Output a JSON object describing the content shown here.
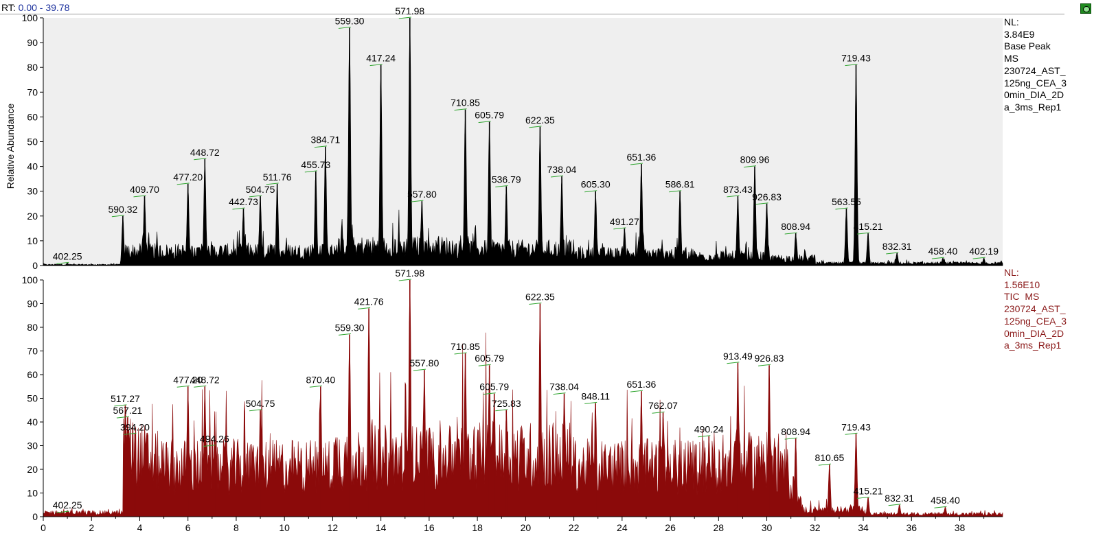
{
  "header": {
    "rt_label": "RT:",
    "rt_range": "0.00 - 39.78",
    "icon": "lock-icon"
  },
  "chart_data": [
    {
      "type": "area",
      "panel": "top",
      "ylabel": "Relative Abundance",
      "xlim": [
        0,
        39.78
      ],
      "ylim": [
        0,
        100
      ],
      "yticks": [
        0,
        10,
        20,
        30,
        40,
        50,
        60,
        70,
        80,
        90,
        100
      ],
      "color": "#000000",
      "info": [
        "NL:",
        "3.84E9",
        "Base Peak",
        "MS",
        "230724_AST_",
        "125ng_CEA_3",
        "0min_DIA_2D",
        "a_3ms_Rep1"
      ],
      "peaks": [
        {
          "x": 1.0,
          "y": 1,
          "label": "402.25"
        },
        {
          "x": 3.3,
          "y": 20,
          "label": "590.32"
        },
        {
          "x": 4.2,
          "y": 28,
          "label": "409.70"
        },
        {
          "x": 6.0,
          "y": 33,
          "label": "477.20"
        },
        {
          "x": 6.7,
          "y": 43,
          "label": "448.72"
        },
        {
          "x": 8.3,
          "y": 23,
          "label": "442.73"
        },
        {
          "x": 9.0,
          "y": 28,
          "label": "504.75"
        },
        {
          "x": 9.7,
          "y": 33,
          "label": "511.76"
        },
        {
          "x": 11.3,
          "y": 38,
          "label": "455.73"
        },
        {
          "x": 11.7,
          "y": 48,
          "label": "384.71"
        },
        {
          "x": 12.7,
          "y": 96,
          "label": "559.30"
        },
        {
          "x": 14.0,
          "y": 81,
          "label": "417.24"
        },
        {
          "x": 15.2,
          "y": 100,
          "label": "571.98"
        },
        {
          "x": 15.7,
          "y": 26,
          "label": "557.80"
        },
        {
          "x": 17.5,
          "y": 63,
          "label": "710.85"
        },
        {
          "x": 18.5,
          "y": 58,
          "label": "605.79"
        },
        {
          "x": 19.2,
          "y": 32,
          "label": "536.79"
        },
        {
          "x": 20.6,
          "y": 56,
          "label": "622.35"
        },
        {
          "x": 21.5,
          "y": 36,
          "label": "738.04"
        },
        {
          "x": 22.9,
          "y": 30,
          "label": "605.30"
        },
        {
          "x": 24.1,
          "y": 15,
          "label": "491.27"
        },
        {
          "x": 24.8,
          "y": 41,
          "label": "651.36"
        },
        {
          "x": 26.4,
          "y": 30,
          "label": "586.81"
        },
        {
          "x": 28.8,
          "y": 28,
          "label": "873.43"
        },
        {
          "x": 29.5,
          "y": 40,
          "label": "809.96"
        },
        {
          "x": 30.0,
          "y": 25,
          "label": "926.83"
        },
        {
          "x": 31.2,
          "y": 13,
          "label": "808.94"
        },
        {
          "x": 33.3,
          "y": 23,
          "label": "563.55"
        },
        {
          "x": 33.7,
          "y": 81,
          "label": "719.43"
        },
        {
          "x": 34.2,
          "y": 13,
          "label": "415.21"
        },
        {
          "x": 35.4,
          "y": 5,
          "label": "832.31"
        },
        {
          "x": 37.3,
          "y": 3,
          "label": "458.40"
        },
        {
          "x": 39.0,
          "y": 3,
          "label": "402.19"
        }
      ]
    },
    {
      "type": "area",
      "panel": "bottom",
      "xlabel": "",
      "xlim": [
        0,
        39.78
      ],
      "ylim": [
        0,
        100
      ],
      "xticks": [
        0,
        2,
        4,
        6,
        8,
        10,
        12,
        14,
        16,
        18,
        20,
        22,
        24,
        26,
        28,
        30,
        32,
        34,
        36,
        38
      ],
      "yticks": [
        0,
        10,
        20,
        30,
        40,
        50,
        60,
        70,
        80,
        90,
        100
      ],
      "color": "#8b0a0a",
      "info": [
        "NL:",
        "1.56E10",
        "TIC  MS",
        "230724_AST_",
        "125ng_CEA_3",
        "0min_DIA_2D",
        "a_3ms_Rep1"
      ],
      "peaks": [
        {
          "x": 1.0,
          "y": 2,
          "label": "402.25"
        },
        {
          "x": 3.4,
          "y": 47,
          "label": "517.27"
        },
        {
          "x": 3.5,
          "y": 42,
          "label": "567.21"
        },
        {
          "x": 3.8,
          "y": 35,
          "label": "394.20"
        },
        {
          "x": 6.0,
          "y": 55,
          "label": "477.20"
        },
        {
          "x": 6.7,
          "y": 55,
          "label": "448.72"
        },
        {
          "x": 7.1,
          "y": 30,
          "label": "494.26"
        },
        {
          "x": 9.0,
          "y": 45,
          "label": "504.75"
        },
        {
          "x": 11.5,
          "y": 55,
          "label": "870.40"
        },
        {
          "x": 12.7,
          "y": 77,
          "label": "559.30"
        },
        {
          "x": 13.5,
          "y": 88,
          "label": "421.76"
        },
        {
          "x": 15.2,
          "y": 100,
          "label": "571.98"
        },
        {
          "x": 15.8,
          "y": 62,
          "label": "557.80"
        },
        {
          "x": 17.5,
          "y": 69,
          "label": "710.85"
        },
        {
          "x": 18.5,
          "y": 64,
          "label": "605.79"
        },
        {
          "x": 18.7,
          "y": 52,
          "label": "605.79"
        },
        {
          "x": 19.2,
          "y": 45,
          "label": "725.83"
        },
        {
          "x": 20.6,
          "y": 90,
          "label": "622.35"
        },
        {
          "x": 21.6,
          "y": 52,
          "label": "738.04"
        },
        {
          "x": 22.9,
          "y": 48,
          "label": "848.11"
        },
        {
          "x": 24.8,
          "y": 53,
          "label": "651.36"
        },
        {
          "x": 25.7,
          "y": 44,
          "label": "762.07"
        },
        {
          "x": 27.6,
          "y": 34,
          "label": "490.24"
        },
        {
          "x": 28.8,
          "y": 65,
          "label": "913.49"
        },
        {
          "x": 30.1,
          "y": 64,
          "label": "926.83"
        },
        {
          "x": 31.2,
          "y": 33,
          "label": "808.94"
        },
        {
          "x": 32.6,
          "y": 22,
          "label": "810.65"
        },
        {
          "x": 33.7,
          "y": 35,
          "label": "719.43"
        },
        {
          "x": 34.2,
          "y": 8,
          "label": "415.21"
        },
        {
          "x": 35.5,
          "y": 5,
          "label": "832.31"
        },
        {
          "x": 37.4,
          "y": 4,
          "label": "458.40"
        }
      ]
    }
  ]
}
